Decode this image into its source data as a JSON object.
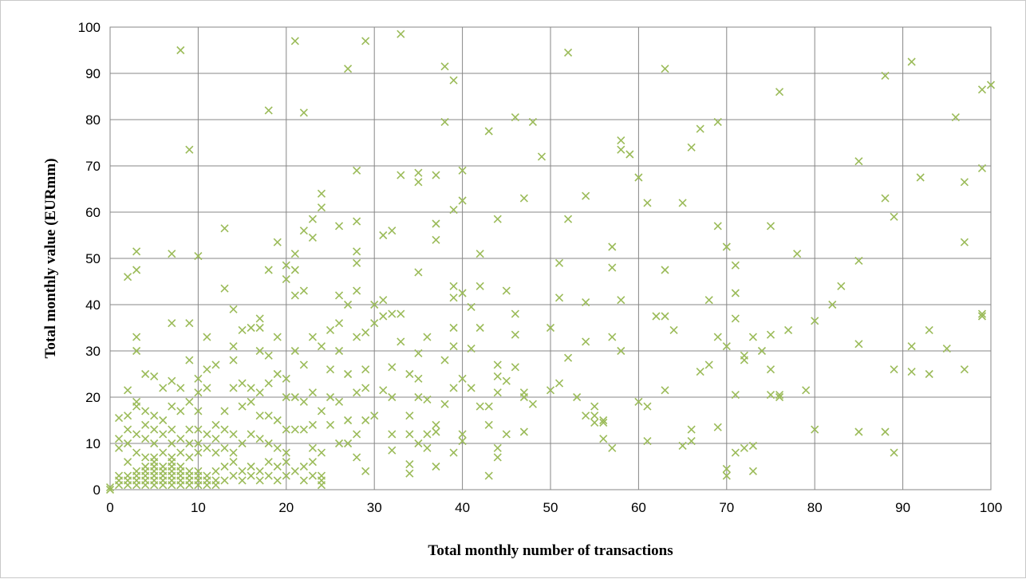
{
  "chart_data": {
    "type": "scatter",
    "title": "",
    "xlabel": "Total monthly number of transactions",
    "ylabel": "Total monthly value (EURmm)",
    "xlim": [
      0,
      100
    ],
    "ylim": [
      0,
      100
    ],
    "x_ticks": [
      "0",
      "10",
      "20",
      "30",
      "40",
      "50",
      "60",
      "70",
      "80",
      "90",
      "100"
    ],
    "y_ticks": [
      "0",
      "10",
      "20",
      "30",
      "40",
      "50",
      "60",
      "70",
      "80",
      "90",
      "100"
    ],
    "grid": true,
    "legend": "none",
    "marker": "x",
    "marker_color": "#9bbb59",
    "points": [
      [
        0,
        0
      ],
      [
        0,
        0.5
      ],
      [
        1,
        1
      ],
      [
        1,
        2
      ],
      [
        1,
        3
      ],
      [
        2,
        1
      ],
      [
        2,
        2
      ],
      [
        2,
        3
      ],
      [
        3,
        1
      ],
      [
        3,
        2
      ],
      [
        3,
        3
      ],
      [
        3,
        4
      ],
      [
        4,
        1
      ],
      [
        4,
        2
      ],
      [
        4,
        3
      ],
      [
        4,
        4
      ],
      [
        4,
        5
      ],
      [
        5,
        1
      ],
      [
        5,
        2
      ],
      [
        5,
        3
      ],
      [
        5,
        4
      ],
      [
        5,
        5
      ],
      [
        5,
        6
      ],
      [
        6,
        1
      ],
      [
        6,
        2
      ],
      [
        6,
        3
      ],
      [
        6,
        4
      ],
      [
        6,
        5
      ],
      [
        7,
        1
      ],
      [
        7,
        2
      ],
      [
        7,
        3
      ],
      [
        7,
        4
      ],
      [
        7,
        5
      ],
      [
        7,
        6
      ],
      [
        8,
        1
      ],
      [
        8,
        2
      ],
      [
        8,
        3
      ],
      [
        8,
        4
      ],
      [
        8,
        5
      ],
      [
        9,
        1
      ],
      [
        9,
        2
      ],
      [
        9,
        3
      ],
      [
        9,
        4
      ],
      [
        10,
        1
      ],
      [
        10,
        2
      ],
      [
        10,
        3
      ],
      [
        10,
        4
      ],
      [
        11,
        1
      ],
      [
        11,
        2
      ],
      [
        11,
        3
      ],
      [
        12,
        1
      ],
      [
        12,
        2
      ],
      [
        12,
        4
      ],
      [
        13,
        2
      ],
      [
        13,
        5
      ],
      [
        14,
        3
      ],
      [
        14,
        6
      ],
      [
        15,
        2
      ],
      [
        15,
        4
      ],
      [
        16,
        3
      ],
      [
        16,
        5
      ],
      [
        17,
        2
      ],
      [
        17,
        4
      ],
      [
        18,
        3
      ],
      [
        18,
        6
      ],
      [
        19,
        2
      ],
      [
        19,
        5
      ],
      [
        20,
        3
      ],
      [
        20,
        6
      ],
      [
        21,
        4
      ],
      [
        22,
        2
      ],
      [
        22,
        5
      ],
      [
        23,
        3
      ],
      [
        23,
        6
      ],
      [
        24,
        1
      ],
      [
        24,
        2
      ],
      [
        24,
        3
      ],
      [
        1,
        9
      ],
      [
        1,
        11
      ],
      [
        1,
        15.5
      ],
      [
        2,
        6
      ],
      [
        2,
        10
      ],
      [
        2,
        13
      ],
      [
        2,
        16
      ],
      [
        2,
        21.5
      ],
      [
        2,
        46
      ],
      [
        3,
        8
      ],
      [
        3,
        12
      ],
      [
        3,
        18
      ],
      [
        3,
        19
      ],
      [
        3,
        30
      ],
      [
        3,
        33
      ],
      [
        3,
        47.5
      ],
      [
        3,
        51.5
      ],
      [
        4,
        7
      ],
      [
        4,
        11
      ],
      [
        4,
        14
      ],
      [
        4,
        17
      ],
      [
        4,
        25
      ],
      [
        5,
        7
      ],
      [
        5,
        10
      ],
      [
        5,
        13
      ],
      [
        5,
        16
      ],
      [
        5,
        24.5
      ],
      [
        6,
        8
      ],
      [
        6,
        12
      ],
      [
        6,
        15
      ],
      [
        6,
        22
      ],
      [
        7,
        7
      ],
      [
        7,
        10
      ],
      [
        7,
        13
      ],
      [
        7,
        18
      ],
      [
        7,
        23.5
      ],
      [
        7,
        36
      ],
      [
        7,
        51
      ],
      [
        8,
        8
      ],
      [
        8,
        11
      ],
      [
        8,
        17
      ],
      [
        8,
        22
      ],
      [
        8,
        95
      ],
      [
        9,
        7
      ],
      [
        9,
        10
      ],
      [
        9,
        13
      ],
      [
        9,
        19
      ],
      [
        9,
        28
      ],
      [
        9,
        36
      ],
      [
        9,
        73.5
      ],
      [
        10,
        8
      ],
      [
        10,
        10
      ],
      [
        10,
        13
      ],
      [
        10,
        17
      ],
      [
        10,
        21
      ],
      [
        10,
        24
      ],
      [
        10,
        50.5
      ],
      [
        11,
        9
      ],
      [
        11,
        12
      ],
      [
        11,
        22
      ],
      [
        11,
        26
      ],
      [
        11,
        33
      ],
      [
        12,
        8
      ],
      [
        12,
        11
      ],
      [
        12,
        14
      ],
      [
        12,
        27
      ],
      [
        13,
        9
      ],
      [
        13,
        13
      ],
      [
        13,
        17
      ],
      [
        13,
        43.5
      ],
      [
        13,
        56.5
      ],
      [
        14,
        8
      ],
      [
        14,
        12
      ],
      [
        14,
        22
      ],
      [
        14,
        28
      ],
      [
        14,
        31
      ],
      [
        14,
        39
      ],
      [
        15,
        10
      ],
      [
        15,
        18
      ],
      [
        15,
        23
      ],
      [
        15,
        34.5
      ],
      [
        16,
        12
      ],
      [
        16,
        19
      ],
      [
        16,
        22
      ],
      [
        16,
        35
      ],
      [
        17,
        11
      ],
      [
        17,
        16
      ],
      [
        17,
        21
      ],
      [
        17,
        30
      ],
      [
        17,
        35
      ],
      [
        17,
        37
      ],
      [
        18,
        10
      ],
      [
        18,
        16
      ],
      [
        18,
        23
      ],
      [
        18,
        29
      ],
      [
        18,
        47.5
      ],
      [
        18,
        82
      ],
      [
        19,
        9
      ],
      [
        19,
        15
      ],
      [
        19,
        25
      ],
      [
        19,
        33
      ],
      [
        19,
        53.5
      ],
      [
        20,
        8
      ],
      [
        20,
        13
      ],
      [
        20,
        20
      ],
      [
        20,
        24
      ],
      [
        20,
        45.5
      ],
      [
        20,
        48.5
      ],
      [
        21,
        13
      ],
      [
        21,
        20
      ],
      [
        21,
        30
      ],
      [
        21,
        42
      ],
      [
        21,
        47.5
      ],
      [
        21,
        51
      ],
      [
        21,
        97
      ],
      [
        22,
        13
      ],
      [
        22,
        19
      ],
      [
        22,
        27
      ],
      [
        22,
        43
      ],
      [
        22,
        56
      ],
      [
        22,
        81.5
      ],
      [
        23,
        9
      ],
      [
        23,
        14
      ],
      [
        23,
        21
      ],
      [
        23,
        33
      ],
      [
        23,
        54.5
      ],
      [
        23,
        58.5
      ],
      [
        24,
        8
      ],
      [
        24,
        17
      ],
      [
        24,
        31
      ],
      [
        24,
        61
      ],
      [
        24,
        64
      ],
      [
        25,
        14
      ],
      [
        25,
        20
      ],
      [
        25,
        26
      ],
      [
        25,
        34.5
      ],
      [
        26,
        10
      ],
      [
        26,
        19
      ],
      [
        26,
        30
      ],
      [
        26,
        36
      ],
      [
        26,
        42
      ],
      [
        26,
        57
      ],
      [
        27,
        10
      ],
      [
        27,
        15
      ],
      [
        27,
        25
      ],
      [
        27,
        40
      ],
      [
        27,
        91
      ],
      [
        28,
        7
      ],
      [
        28,
        12
      ],
      [
        28,
        21
      ],
      [
        28,
        33
      ],
      [
        28,
        43
      ],
      [
        28,
        49
      ],
      [
        28,
        51.5
      ],
      [
        28,
        58
      ],
      [
        28,
        69
      ],
      [
        29,
        4
      ],
      [
        29,
        15
      ],
      [
        29,
        22
      ],
      [
        29,
        26
      ],
      [
        29,
        34
      ],
      [
        29,
        97
      ],
      [
        30,
        16
      ],
      [
        30,
        36
      ],
      [
        30,
        40
      ],
      [
        31,
        21.5
      ],
      [
        31,
        37.5
      ],
      [
        31,
        41
      ],
      [
        31,
        55
      ],
      [
        32,
        8.5
      ],
      [
        32,
        12
      ],
      [
        32,
        20
      ],
      [
        32,
        26.5
      ],
      [
        32,
        38
      ],
      [
        32,
        56
      ],
      [
        33,
        32
      ],
      [
        33,
        38
      ],
      [
        33,
        68
      ],
      [
        33,
        98.5
      ],
      [
        34,
        3.5
      ],
      [
        34,
        5.5
      ],
      [
        34,
        12
      ],
      [
        34,
        16
      ],
      [
        34,
        25
      ],
      [
        35,
        10
      ],
      [
        35,
        20
      ],
      [
        35,
        24
      ],
      [
        35,
        29.5
      ],
      [
        35,
        47
      ],
      [
        35,
        66.5
      ],
      [
        35,
        68.5
      ],
      [
        36,
        9
      ],
      [
        36,
        12
      ],
      [
        36,
        19.5
      ],
      [
        36,
        33
      ],
      [
        37,
        5
      ],
      [
        37,
        12.5
      ],
      [
        37,
        14
      ],
      [
        37,
        54
      ],
      [
        37,
        57.5
      ],
      [
        37,
        68
      ],
      [
        38,
        18.5
      ],
      [
        38,
        28
      ],
      [
        38,
        79.5
      ],
      [
        38,
        91.5
      ],
      [
        39,
        8
      ],
      [
        39,
        22
      ],
      [
        39,
        31
      ],
      [
        39,
        35
      ],
      [
        39,
        41.5
      ],
      [
        39,
        44
      ],
      [
        39,
        60.5
      ],
      [
        39,
        88.5
      ],
      [
        40,
        10.5
      ],
      [
        40,
        12
      ],
      [
        40,
        24
      ],
      [
        40,
        42.5
      ],
      [
        40,
        62.5
      ],
      [
        40,
        69
      ],
      [
        41,
        22
      ],
      [
        41,
        30.5
      ],
      [
        41,
        39.5
      ],
      [
        42,
        18
      ],
      [
        42,
        35
      ],
      [
        42,
        44
      ],
      [
        42,
        51
      ],
      [
        43,
        3
      ],
      [
        43,
        14
      ],
      [
        43,
        18
      ],
      [
        43,
        77.5
      ],
      [
        44,
        7
      ],
      [
        44,
        9
      ],
      [
        44,
        21
      ],
      [
        44,
        24.5
      ],
      [
        44,
        27
      ],
      [
        44,
        58.5
      ],
      [
        45,
        12
      ],
      [
        45,
        23.5
      ],
      [
        45,
        43
      ],
      [
        46,
        26.5
      ],
      [
        46,
        33.5
      ],
      [
        46,
        38
      ],
      [
        46,
        80.5
      ],
      [
        47,
        12.5
      ],
      [
        47,
        20
      ],
      [
        47,
        21
      ],
      [
        47,
        63
      ],
      [
        48,
        18.5
      ],
      [
        48,
        79.5
      ],
      [
        49,
        72
      ],
      [
        50,
        21.5
      ],
      [
        50,
        35
      ],
      [
        51,
        23
      ],
      [
        51,
        41.5
      ],
      [
        51,
        49
      ],
      [
        52,
        28.5
      ],
      [
        52,
        58.5
      ],
      [
        52,
        94.5
      ],
      [
        53,
        20
      ],
      [
        54,
        16
      ],
      [
        54,
        32
      ],
      [
        54,
        40.5
      ],
      [
        54,
        63.5
      ],
      [
        55,
        14.5
      ],
      [
        55,
        16
      ],
      [
        55,
        18
      ],
      [
        56,
        11
      ],
      [
        56,
        14.5
      ],
      [
        56,
        15
      ],
      [
        57,
        9
      ],
      [
        57,
        33
      ],
      [
        57,
        48
      ],
      [
        57,
        52.5
      ],
      [
        58,
        30
      ],
      [
        58,
        41
      ],
      [
        58,
        73.5
      ],
      [
        58,
        75.5
      ],
      [
        59,
        72.5
      ],
      [
        60,
        19
      ],
      [
        60,
        67.5
      ],
      [
        61,
        10.5
      ],
      [
        61,
        18
      ],
      [
        61,
        62
      ],
      [
        62,
        37.5
      ],
      [
        63,
        21.5
      ],
      [
        63,
        37.5
      ],
      [
        63,
        47.5
      ],
      [
        63,
        91
      ],
      [
        64,
        34.5
      ],
      [
        65,
        9.5
      ],
      [
        65,
        62
      ],
      [
        66,
        10.5
      ],
      [
        66,
        13
      ],
      [
        66,
        74
      ],
      [
        67,
        25.5
      ],
      [
        67,
        78
      ],
      [
        68,
        27
      ],
      [
        68,
        41
      ],
      [
        69,
        13.5
      ],
      [
        69,
        33
      ],
      [
        69,
        57
      ],
      [
        69,
        79.5
      ],
      [
        70,
        3
      ],
      [
        70,
        4.5
      ],
      [
        70,
        31
      ],
      [
        70,
        52.5
      ],
      [
        71,
        8
      ],
      [
        71,
        20.5
      ],
      [
        71,
        37
      ],
      [
        71,
        42.5
      ],
      [
        71,
        48.5
      ],
      [
        72,
        9
      ],
      [
        72,
        28
      ],
      [
        72,
        29
      ],
      [
        73,
        4
      ],
      [
        73,
        9.5
      ],
      [
        73,
        33
      ],
      [
        74,
        30
      ],
      [
        75,
        20.5
      ],
      [
        75,
        26
      ],
      [
        75,
        33.5
      ],
      [
        75,
        57
      ],
      [
        76,
        20
      ],
      [
        76,
        20.5
      ],
      [
        76,
        86
      ],
      [
        77,
        34.5
      ],
      [
        78,
        51
      ],
      [
        79,
        21.5
      ],
      [
        80,
        13
      ],
      [
        80,
        36.5
      ],
      [
        82,
        40
      ],
      [
        83,
        44
      ],
      [
        85,
        12.5
      ],
      [
        85,
        31.5
      ],
      [
        85,
        49.5
      ],
      [
        85,
        71
      ],
      [
        88,
        12.5
      ],
      [
        88,
        63
      ],
      [
        88,
        89.5
      ],
      [
        89,
        8
      ],
      [
        89,
        26
      ],
      [
        89,
        59
      ],
      [
        91,
        25.5
      ],
      [
        91,
        31
      ],
      [
        91,
        92.5
      ],
      [
        92,
        67.5
      ],
      [
        93,
        25
      ],
      [
        93,
        34.5
      ],
      [
        95,
        30.5
      ],
      [
        96,
        80.5
      ],
      [
        97,
        26
      ],
      [
        97,
        53.5
      ],
      [
        97,
        66.5
      ],
      [
        99,
        37.5
      ],
      [
        99,
        38
      ],
      [
        99,
        69.5
      ],
      [
        99,
        86.5
      ],
      [
        100,
        87.5
      ]
    ]
  }
}
